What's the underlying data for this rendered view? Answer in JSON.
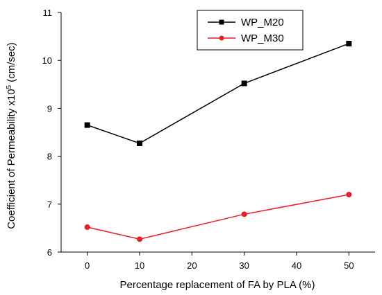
{
  "chart_data": {
    "type": "line",
    "title": "",
    "xlabel": "Percentage replacement of FA by PLA (%)",
    "ylabel_main": "Coefficient of Permeability x10",
    "ylabel_sup": "5",
    "ylabel_unit": " (cm/sec)",
    "xlim": [
      -5,
      55
    ],
    "ylim": [
      6,
      11
    ],
    "xticks": [
      0,
      10,
      20,
      30,
      40,
      50
    ],
    "yticks": [
      6,
      7,
      8,
      9,
      10,
      11
    ],
    "grid": false,
    "legend_position": "top-right",
    "series": [
      {
        "name": "WP_M20",
        "color": "#000000",
        "marker": "square",
        "x": [
          0,
          10,
          30,
          50
        ],
        "values": [
          8.65,
          8.27,
          9.52,
          10.35
        ]
      },
      {
        "name": "WP_M30",
        "color": "#ee1c25",
        "marker": "circle",
        "x": [
          0,
          10,
          30,
          50
        ],
        "values": [
          6.52,
          6.27,
          6.79,
          7.2
        ]
      }
    ]
  }
}
